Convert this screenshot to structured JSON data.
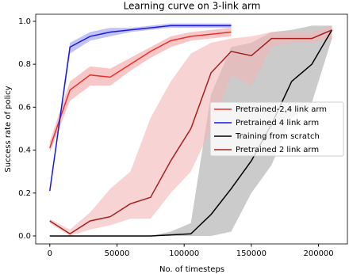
{
  "chart_data": {
    "type": "line",
    "title": "Learning curve on 3-link arm",
    "x_label": "No. of timesteps",
    "y_label": "Success rate of policy",
    "xlim": [
      -10500,
      221500
    ],
    "xticks": [
      0,
      50000,
      100000,
      150000,
      200000
    ],
    "ylim": [
      -0.037,
      1.033
    ],
    "yticks": [
      {
        "value": 0.0,
        "label": "0.0"
      },
      0.2,
      0.4,
      0.6,
      0.8,
      {
        "value": 1.0,
        "label": "1.0"
      }
    ],
    "legend": "center right",
    "series": [
      {
        "name": "Pretrained-2,4 link arm",
        "color": "#e8302a",
        "band_color": "#f2a0a0",
        "x": [
          0,
          15000,
          30000,
          45000,
          60000,
          75000,
          90000,
          105000,
          120000,
          135000
        ],
        "values": [
          0.41,
          0.68,
          0.75,
          0.74,
          0.8,
          0.86,
          0.91,
          0.93,
          0.94,
          0.95
        ],
        "lower": [
          0.39,
          0.63,
          0.7,
          0.7,
          0.77,
          0.83,
          0.88,
          0.91,
          0.92,
          0.93
        ],
        "upper": [
          0.44,
          0.72,
          0.79,
          0.78,
          0.83,
          0.88,
          0.93,
          0.95,
          0.96,
          0.97
        ]
      },
      {
        "name": "Pretrained 4 link arm",
        "color": "#1a1adf",
        "band_color": "#9a9af0",
        "x": [
          0,
          15000,
          30000,
          45000,
          60000,
          75000,
          90000,
          105000,
          120000,
          135000
        ],
        "values": [
          0.21,
          0.88,
          0.93,
          0.95,
          0.96,
          0.97,
          0.98,
          0.98,
          0.98,
          0.98
        ],
        "lower": [
          0.2,
          0.85,
          0.91,
          0.93,
          0.95,
          0.96,
          0.97,
          0.97,
          0.97,
          0.97
        ],
        "upper": [
          0.23,
          0.9,
          0.95,
          0.97,
          0.97,
          0.98,
          0.99,
          0.99,
          0.99,
          0.99
        ]
      },
      {
        "name": "Training from scratch",
        "color": "#000000",
        "band_color": "#a8a8a8",
        "x": [
          0,
          15000,
          30000,
          45000,
          60000,
          75000,
          90000,
          105000,
          120000,
          135000,
          150000,
          165000,
          180000,
          195000,
          210000
        ],
        "values": [
          0,
          0,
          0,
          0,
          0,
          0,
          0.005,
          0.01,
          0.1,
          0.22,
          0.35,
          0.52,
          0.72,
          0.8,
          0.96
        ],
        "lower": [
          0,
          0,
          0,
          0,
          0,
          0,
          0,
          0,
          0,
          0.02,
          0.2,
          0.33,
          0.55,
          0.62,
          0.92
        ],
        "upper": [
          0,
          0,
          0,
          0,
          0,
          0,
          0.02,
          0.06,
          0.66,
          0.88,
          0.9,
          0.95,
          0.96,
          0.98,
          0.98
        ]
      },
      {
        "name": "Pretrained 2 link arm",
        "color": "#a31f1f",
        "band_color": "#f3b6b6",
        "x": [
          0,
          15000,
          30000,
          45000,
          60000,
          75000,
          90000,
          105000,
          120000,
          135000,
          150000,
          165000,
          180000,
          195000,
          210000
        ],
        "values": [
          0.07,
          0.01,
          0.07,
          0.09,
          0.15,
          0.18,
          0.35,
          0.5,
          0.76,
          0.86,
          0.84,
          0.92,
          0.92,
          0.92,
          0.96
        ],
        "lower": [
          0.06,
          0.0,
          0.03,
          0.05,
          0.08,
          0.08,
          0.2,
          0.3,
          0.5,
          0.75,
          0.7,
          0.88,
          0.9,
          0.9,
          0.92
        ],
        "upper": [
          0.08,
          0.03,
          0.11,
          0.22,
          0.3,
          0.55,
          0.72,
          0.85,
          0.9,
          0.92,
          0.93,
          0.95,
          0.95,
          0.95,
          0.98
        ]
      }
    ]
  }
}
